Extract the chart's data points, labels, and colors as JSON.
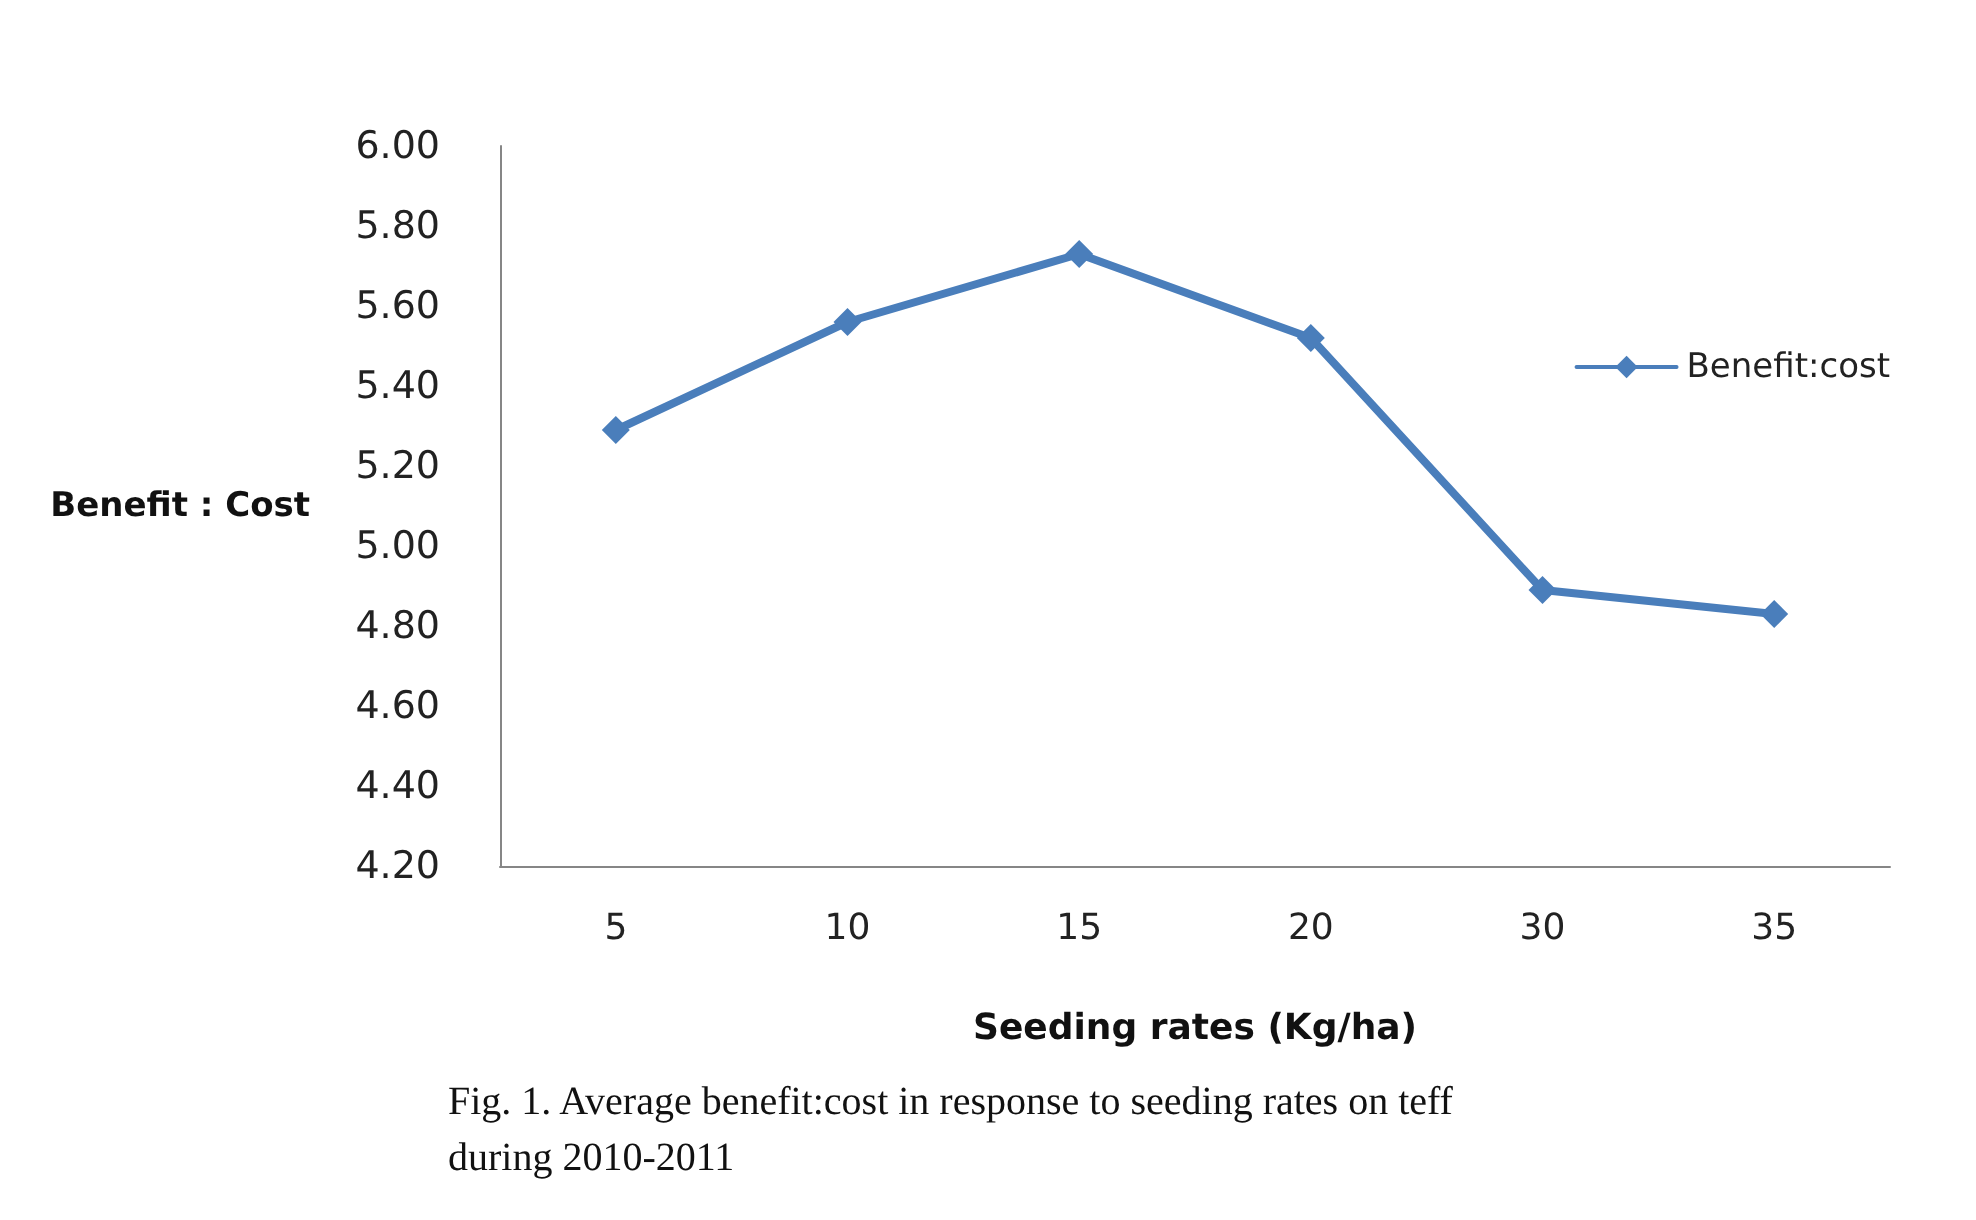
{
  "chart_data": {
    "type": "line",
    "categories": [
      "5",
      "10",
      "15",
      "20",
      "30",
      "35"
    ],
    "series": [
      {
        "name": "Benefit:cost",
        "color": "#4a7ebb",
        "values": [
          5.29,
          5.56,
          5.73,
          5.52,
          4.89,
          4.83
        ]
      }
    ],
    "ylim": [
      4.2,
      6.0
    ],
    "yticks": [
      {
        "value": 4.2,
        "label": "4.20"
      },
      {
        "value": 4.4,
        "label": "4.40"
      },
      {
        "value": 4.6,
        "label": "4.60"
      },
      {
        "value": 4.8,
        "label": "4.80"
      },
      {
        "value": 5.0,
        "label": "5.00"
      },
      {
        "value": 5.2,
        "label": "5.20"
      },
      {
        "value": 5.4,
        "label": "5.40"
      },
      {
        "value": 5.6,
        "label": "5.60"
      },
      {
        "value": 5.8,
        "label": "5.80"
      },
      {
        "value": 6.0,
        "label": "6.00"
      }
    ],
    "xlabel": "Seeding rates (Kg/ha)",
    "ylabel": "Benefit : Cost",
    "legend": "right",
    "marker": "diamond",
    "line_style": "solid",
    "grid": false,
    "annotations": [
      "Fig. 1. Average benefit:cost in response to seeding rates on teff during 2010-2011"
    ]
  }
}
